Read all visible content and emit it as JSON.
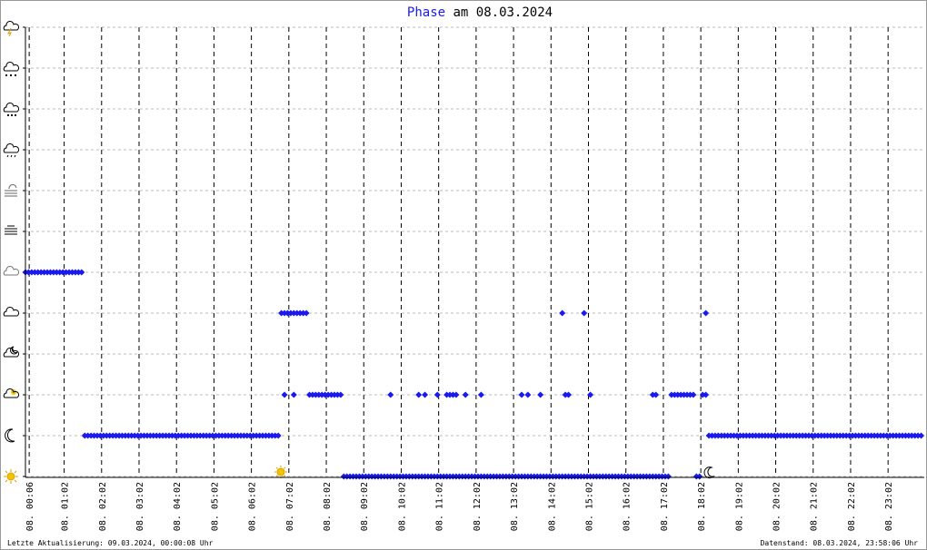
{
  "chart_data": {
    "type": "scatter",
    "title": {
      "series": "Phase",
      "date": "am 08.03.2024"
    },
    "footer_left": "Letzte Aktualisierung: 09.03.2024, 00:00:08 Uhr",
    "footer_right": "Datenstand: 08.03.2024, 23:58:06 Uhr",
    "xlim": [
      0,
      1440
    ],
    "ylim": [
      0,
      11
    ],
    "yticks": [
      0,
      1,
      2,
      3,
      4,
      5,
      6,
      7,
      8,
      9,
      10,
      11
    ],
    "xticks": [
      {
        "value": 6,
        "label": "08. 00:06"
      },
      {
        "value": 62,
        "label": "08. 01:02"
      },
      {
        "value": 122,
        "label": "08. 02:02"
      },
      {
        "value": 182,
        "label": "08. 03:02"
      },
      {
        "value": 242,
        "label": "08. 04:02"
      },
      {
        "value": 302,
        "label": "08. 05:02"
      },
      {
        "value": 362,
        "label": "08. 06:02"
      },
      {
        "value": 422,
        "label": "08. 07:02"
      },
      {
        "value": 482,
        "label": "08. 08:02"
      },
      {
        "value": 542,
        "label": "08. 09:02"
      },
      {
        "value": 602,
        "label": "08. 10:02"
      },
      {
        "value": 662,
        "label": "08. 11:02"
      },
      {
        "value": 722,
        "label": "08. 12:02"
      },
      {
        "value": 782,
        "label": "08. 13:02"
      },
      {
        "value": 842,
        "label": "08. 14:02"
      },
      {
        "value": 902,
        "label": "08. 15:02"
      },
      {
        "value": 962,
        "label": "08. 16:02"
      },
      {
        "value": 1022,
        "label": "08. 17:02"
      },
      {
        "value": 1082,
        "label": "08. 18:02"
      },
      {
        "value": 1142,
        "label": "08. 19:02"
      },
      {
        "value": 1202,
        "label": "08. 20:02"
      },
      {
        "value": 1262,
        "label": "08. 21:02"
      },
      {
        "value": 1322,
        "label": "08. 22:02"
      },
      {
        "value": 1382,
        "label": "08. 23:02"
      }
    ],
    "grid": true,
    "series": [
      {
        "color": "#1a1aee",
        "x": [
          0,
          5,
          10,
          15,
          20,
          25,
          30,
          35,
          40,
          45,
          50,
          55,
          60,
          65,
          70,
          75,
          80,
          85,
          90,
          95,
          100,
          105,
          110,
          115,
          120,
          125,
          130,
          135,
          140,
          145,
          150,
          155,
          160,
          165,
          170,
          175,
          180,
          185,
          190,
          195,
          200,
          205,
          210,
          215,
          220,
          225,
          230,
          235,
          240,
          245,
          250,
          255,
          260,
          265,
          270,
          275,
          280,
          285,
          290,
          295,
          300,
          305,
          310,
          315,
          320,
          325,
          330,
          335,
          340,
          345,
          350,
          355,
          360,
          365,
          370,
          375,
          380,
          385,
          390,
          395,
          400,
          405,
          410,
          415,
          420,
          425,
          430,
          435,
          440,
          445,
          450,
          455,
          460,
          465,
          470,
          475,
          480,
          485,
          490,
          495,
          500,
          505,
          510,
          515,
          520,
          525,
          530,
          535,
          540,
          545,
          550,
          555,
          560,
          565,
          570,
          575,
          580,
          585,
          590,
          595,
          600,
          605,
          610,
          615,
          620,
          625,
          630,
          635,
          640,
          645,
          650,
          655,
          660,
          665,
          670,
          675,
          680,
          685,
          690,
          695,
          700,
          705,
          710,
          715,
          720,
          725,
          730,
          735,
          740,
          745,
          750,
          755,
          760,
          765,
          770,
          775,
          780,
          785,
          790,
          795,
          800,
          805,
          810,
          815,
          820,
          825,
          830,
          835,
          840,
          845,
          850,
          855,
          860,
          865,
          870,
          875,
          880,
          885,
          890,
          895,
          900,
          905,
          910,
          915,
          920,
          925,
          930,
          935,
          940,
          945,
          950,
          955,
          960,
          965,
          970,
          975,
          980,
          985,
          990,
          995,
          1000,
          1005,
          1010,
          1015,
          1020,
          1025,
          1030,
          1035,
          1040,
          1045,
          1050,
          1055,
          1060,
          1065,
          1070,
          1075,
          1080,
          1085,
          1090,
          1095,
          1100,
          1105,
          1110,
          1115,
          1120,
          1125,
          1130,
          1135,
          1140,
          1145,
          1150,
          1155,
          1160,
          1165,
          1170,
          1175,
          1180,
          1185,
          1190,
          1195,
          1200,
          1205,
          1210,
          1215,
          1220,
          1225,
          1230,
          1235,
          1240,
          1245,
          1250,
          1255,
          1260,
          1265,
          1270,
          1275,
          1280,
          1285,
          1290,
          1295,
          1300,
          1305,
          1310,
          1315,
          1320,
          1325,
          1330,
          1335,
          1340,
          1345,
          1350,
          1355,
          1360,
          1365,
          1370,
          1375,
          1380,
          1385,
          1390,
          1395,
          1400,
          1405,
          1410,
          1415,
          1420,
          1425,
          1430,
          1435
        ],
        "values": [
          5,
          5,
          5,
          5,
          5,
          5,
          5,
          5,
          5,
          5,
          5,
          5,
          5,
          5,
          5,
          5,
          5,
          5,
          5,
          1,
          1,
          1,
          1,
          1,
          1,
          1,
          1,
          1,
          1,
          1,
          1,
          1,
          1,
          1,
          1,
          1,
          1,
          1,
          1,
          1,
          1,
          1,
          1,
          1,
          1,
          1,
          1,
          1,
          1,
          1,
          1,
          1,
          1,
          1,
          1,
          1,
          1,
          1,
          1,
          1,
          1,
          1,
          1,
          1,
          1,
          1,
          1,
          1,
          1,
          1,
          1,
          1,
          1,
          1,
          1,
          1,
          1,
          1,
          1,
          1,
          1,
          1,
          4,
          4,
          4,
          4,
          4,
          4,
          4,
          4,
          4,
          2,
          2,
          2,
          2,
          2,
          2,
          2,
          2,
          2,
          2,
          2,
          0,
          0,
          0,
          0,
          0,
          0,
          0,
          0,
          0,
          0,
          0,
          0,
          0,
          0,
          0,
          0,
          0,
          0,
          0,
          0,
          0,
          0,
          0,
          0,
          0,
          0,
          0,
          0,
          0,
          0,
          0,
          0,
          0,
          0,
          0,
          0,
          0,
          0,
          0,
          0,
          0,
          0,
          0,
          0,
          0,
          0,
          0,
          0,
          0,
          0,
          0,
          0,
          0,
          0,
          0,
          0,
          0,
          0,
          0,
          0,
          0,
          0,
          0,
          0,
          0,
          0,
          0,
          0,
          0,
          0,
          0,
          0,
          0,
          0,
          0,
          0,
          0,
          0,
          0,
          0,
          0,
          0,
          0,
          0,
          0,
          0,
          0,
          0,
          0,
          0,
          0,
          0,
          0,
          0,
          0,
          0,
          0,
          0,
          0,
          0,
          0,
          0,
          0,
          0,
          0,
          2,
          2,
          2,
          2,
          2,
          2,
          2,
          2,
          0,
          0,
          2,
          2,
          1,
          1,
          1,
          1,
          1,
          1,
          1,
          1,
          1,
          1,
          1,
          1,
          1,
          1,
          1,
          1,
          1,
          1,
          1,
          1,
          1,
          1,
          1,
          1,
          1,
          1,
          1,
          1,
          1,
          1,
          1,
          1,
          1,
          1,
          1,
          1,
          1,
          1,
          1,
          1,
          1,
          1,
          1,
          1,
          1,
          1,
          1,
          1,
          1,
          1,
          1,
          1,
          1,
          1,
          1,
          1,
          1,
          1,
          1,
          1,
          1,
          1,
          1,
          1,
          1,
          1,
          1,
          1,
          1
        ]
      },
      {
        "color": "#1a1aee",
        "x": [
          415,
          430,
          585,
          630,
          640,
          660,
          675,
          680,
          685,
          690,
          705,
          730,
          795,
          805,
          825,
          860,
          865,
          870,
          895,
          905,
          1005,
          1010,
          1090
        ],
        "values": [
          2,
          2,
          2,
          2,
          2,
          2,
          2,
          2,
          2,
          2,
          2,
          2,
          2,
          2,
          2,
          4,
          2,
          2,
          4,
          2,
          2,
          2,
          4
        ]
      }
    ]
  }
}
